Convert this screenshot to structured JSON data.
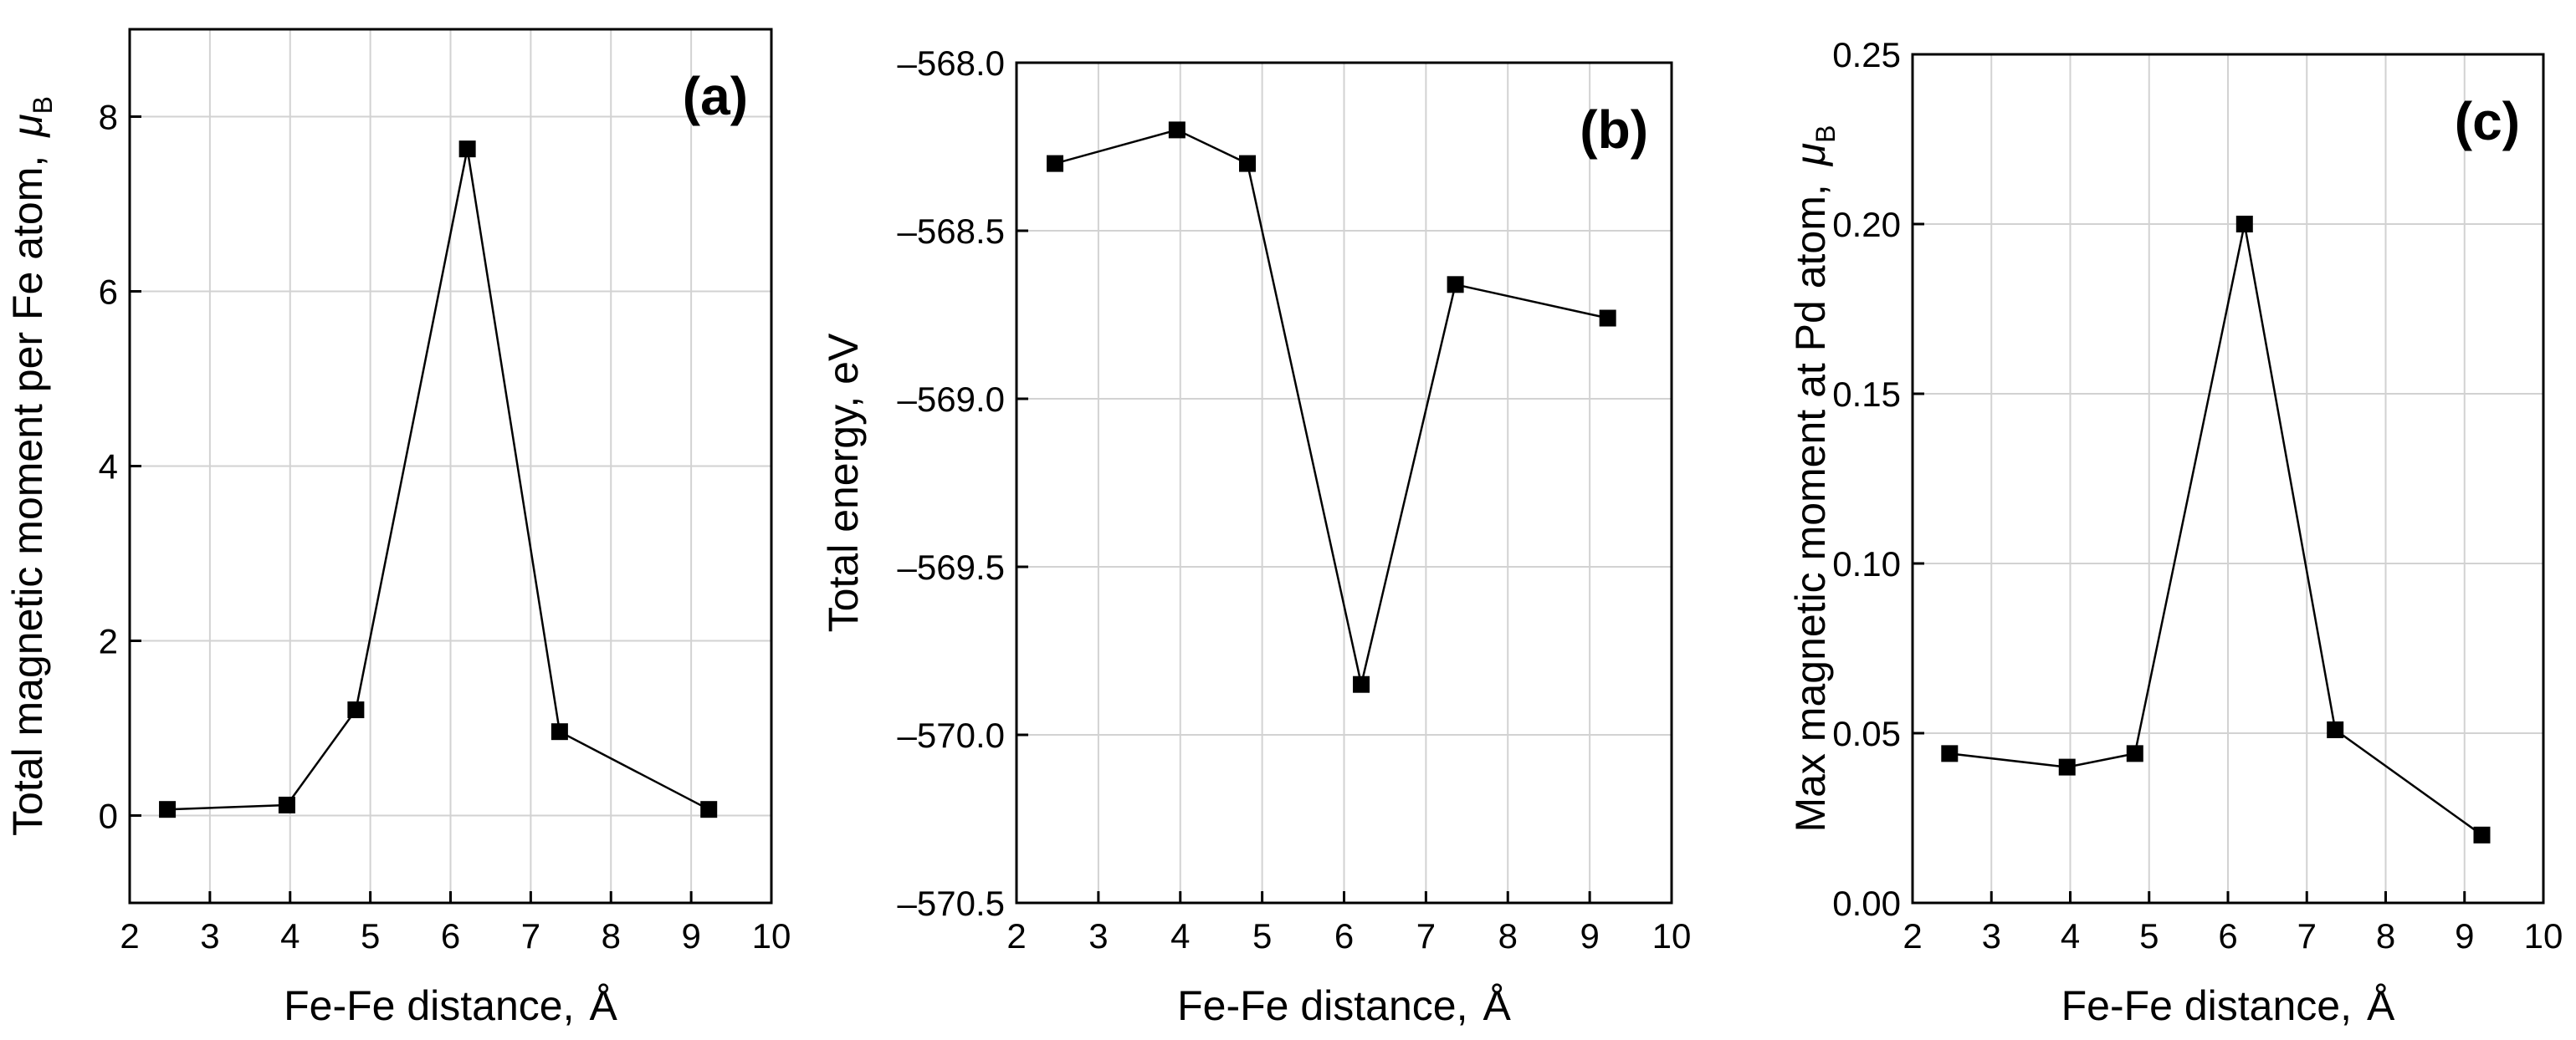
{
  "chart_data": [
    {
      "type": "line",
      "panel_label": "(a)",
      "xlabel": "Fe-Fe distance,",
      "xlabel_unit": "Å",
      "ylabel": "Total magnetic moment per Fe atom,",
      "ylabel_unit": {
        "symbol": "μ",
        "subscript": "B"
      },
      "xlim": [
        2,
        10
      ],
      "ylim": [
        -1,
        9
      ],
      "xticks": [
        2,
        3,
        4,
        5,
        6,
        7,
        8,
        9,
        10
      ],
      "yticks": [
        0,
        2,
        4,
        6,
        8
      ],
      "ytick_labels": [
        "0",
        "2",
        "4",
        "6",
        "8"
      ],
      "grid": true,
      "series": [
        {
          "name": "moment per Fe",
          "x": [
            2.47,
            3.96,
            4.82,
            6.21,
            7.36,
            9.22
          ],
          "y": [
            0.07,
            0.12,
            1.21,
            7.63,
            0.96,
            0.07
          ]
        }
      ]
    },
    {
      "type": "line",
      "panel_label": "(b)",
      "xlabel": "Fe-Fe distance,",
      "xlabel_unit": "Å",
      "ylabel": "Total energy, eV",
      "xlim": [
        2,
        10
      ],
      "ylim": [
        -570.5,
        -568.0
      ],
      "xticks": [
        2,
        3,
        4,
        5,
        6,
        7,
        8,
        9,
        10
      ],
      "yticks": [
        -568.0,
        -568.5,
        -569.0,
        -569.5,
        -570.0,
        -570.5
      ],
      "ytick_labels": [
        "–568.0",
        "–568.5",
        "–569.0",
        "–569.5",
        "–570.0",
        "–570.5"
      ],
      "grid": true,
      "series": [
        {
          "name": "total energy",
          "x": [
            2.47,
            3.96,
            4.82,
            6.21,
            7.36,
            9.22
          ],
          "y": [
            -568.3,
            -568.2,
            -568.3,
            -569.85,
            -568.66,
            -568.76
          ]
        }
      ]
    },
    {
      "type": "line",
      "panel_label": "(c)",
      "xlabel": "Fe-Fe distance,",
      "xlabel_unit": "Å",
      "ylabel": "Max magnetic moment at Pd atom,",
      "ylabel_unit": {
        "symbol": "μ",
        "subscript": "B"
      },
      "xlim": [
        2,
        10
      ],
      "ylim": [
        0,
        0.25
      ],
      "xticks": [
        2,
        3,
        4,
        5,
        6,
        7,
        8,
        9,
        10
      ],
      "yticks": [
        0.0,
        0.05,
        0.1,
        0.15,
        0.2,
        0.25
      ],
      "ytick_labels": [
        "0.00",
        "0.05",
        "0.10",
        "0.15",
        "0.20",
        "0.25"
      ],
      "grid": true,
      "series": [
        {
          "name": "max Pd moment",
          "x": [
            2.47,
            3.96,
            4.82,
            6.21,
            7.36,
            9.22
          ],
          "y": [
            0.044,
            0.04,
            0.044,
            0.2,
            0.051,
            0.02
          ]
        }
      ]
    }
  ]
}
